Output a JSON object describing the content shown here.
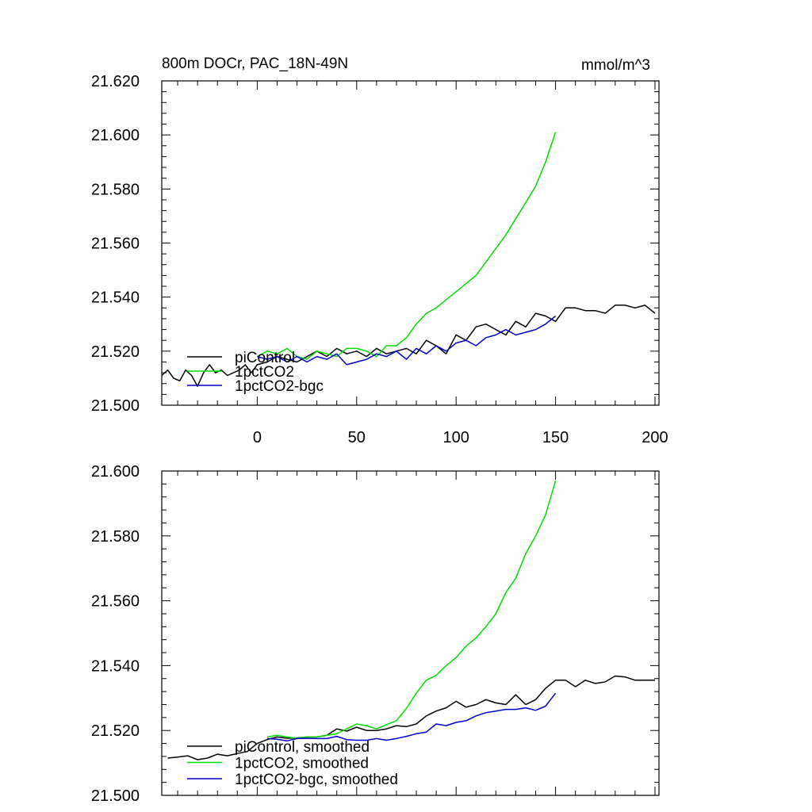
{
  "chart_data": [
    {
      "type": "line",
      "title": "800m DOCr, PAC_18N-49N",
      "units": "mmol/m^3",
      "xlim": [
        -48,
        202
      ],
      "ylim": [
        21.5,
        21.62
      ],
      "xticks": [
        0,
        50,
        100,
        150,
        200
      ],
      "yticks": [
        21.5,
        21.52,
        21.54,
        21.56,
        21.58,
        21.6,
        21.62
      ],
      "ytick_labels": [
        "21.500",
        "21.520",
        "21.540",
        "21.560",
        "21.580",
        "21.600",
        "21.620"
      ],
      "legend": "bottom-left",
      "series": [
        {
          "name": "piControl",
          "color": "#000000",
          "x": [
            -48,
            -45,
            -42,
            -39,
            -36,
            -33,
            -30,
            -27,
            -24,
            -21,
            -18,
            -15,
            -12,
            -9,
            -6,
            -3,
            0,
            5,
            10,
            15,
            20,
            25,
            30,
            35,
            40,
            45,
            50,
            55,
            60,
            65,
            70,
            75,
            80,
            85,
            90,
            95,
            100,
            105,
            110,
            115,
            120,
            125,
            130,
            135,
            140,
            145,
            150,
            155,
            160,
            165,
            170,
            175,
            180,
            185,
            190,
            195,
            200
          ],
          "y": [
            21.511,
            21.513,
            21.51,
            21.509,
            21.513,
            21.511,
            21.507,
            21.512,
            21.515,
            21.512,
            21.513,
            21.511,
            21.512,
            21.513,
            21.515,
            21.512,
            21.515,
            21.516,
            21.518,
            21.517,
            21.516,
            21.518,
            21.52,
            21.518,
            21.521,
            21.519,
            21.52,
            21.518,
            21.521,
            21.519,
            21.52,
            21.521,
            21.519,
            21.524,
            21.522,
            21.519,
            21.526,
            21.524,
            21.529,
            21.53,
            21.528,
            21.526,
            21.531,
            21.529,
            21.534,
            21.533,
            21.531,
            21.536,
            21.536,
            21.535,
            21.535,
            21.534,
            21.537,
            21.537,
            21.536,
            21.537,
            21.534
          ]
        },
        {
          "name": "1pctCO2",
          "color": "#00dd00",
          "x": [
            0,
            5,
            10,
            15,
            20,
            25,
            30,
            35,
            40,
            45,
            50,
            55,
            60,
            65,
            70,
            75,
            80,
            85,
            90,
            95,
            100,
            105,
            110,
            115,
            120,
            125,
            130,
            135,
            140,
            145,
            150
          ],
          "y": [
            21.518,
            21.52,
            21.519,
            21.521,
            21.518,
            21.517,
            21.52,
            21.519,
            21.518,
            21.521,
            21.521,
            21.52,
            21.518,
            21.522,
            21.522,
            21.525,
            21.53,
            21.534,
            21.536,
            21.539,
            21.542,
            21.545,
            21.548,
            21.553,
            21.558,
            21.563,
            21.569,
            21.575,
            21.581,
            21.59,
            21.601
          ]
        },
        {
          "name": "1pctCO2-bgc",
          "color": "#0000cc",
          "x": [
            0,
            5,
            10,
            15,
            20,
            25,
            30,
            35,
            40,
            45,
            50,
            55,
            60,
            65,
            70,
            75,
            80,
            85,
            90,
            95,
            100,
            105,
            110,
            115,
            120,
            125,
            130,
            135,
            140,
            145,
            150
          ],
          "y": [
            21.518,
            21.517,
            21.518,
            21.516,
            21.518,
            21.516,
            21.518,
            21.517,
            21.519,
            21.515,
            21.516,
            21.517,
            21.519,
            21.518,
            21.52,
            21.517,
            21.521,
            21.519,
            21.522,
            21.52,
            21.523,
            21.524,
            21.522,
            21.525,
            21.526,
            21.528,
            21.526,
            21.527,
            21.528,
            21.53,
            21.533
          ]
        }
      ]
    },
    {
      "type": "line",
      "title": "",
      "xlim": [
        -48,
        202
      ],
      "ylim": [
        21.5,
        21.6
      ],
      "xticks": [
        0,
        50,
        100,
        150,
        200
      ],
      "yticks": [
        21.5,
        21.52,
        21.54,
        21.56,
        21.58,
        21.6
      ],
      "ytick_labels": [
        "21.500",
        "21.520",
        "21.540",
        "21.560",
        "21.580",
        "21.600"
      ],
      "legend": "bottom-left",
      "series": [
        {
          "name": "piControl, smoothed",
          "color": "#000000",
          "x": [
            -45,
            -40,
            -35,
            -30,
            -25,
            -20,
            -15,
            -10,
            -5,
            0,
            5,
            10,
            15,
            20,
            25,
            30,
            35,
            40,
            45,
            50,
            55,
            60,
            65,
            70,
            75,
            80,
            85,
            90,
            95,
            100,
            105,
            110,
            115,
            120,
            125,
            130,
            135,
            140,
            145,
            150,
            155,
            160,
            165,
            170,
            175,
            180,
            185,
            190,
            195,
            200
          ],
          "y": [
            21.5115,
            21.5118,
            21.5122,
            21.511,
            21.5115,
            21.5127,
            21.5122,
            21.5129,
            21.5135,
            21.516,
            21.5172,
            21.518,
            21.5176,
            21.5177,
            21.518,
            21.518,
            21.5185,
            21.5205,
            21.5198,
            21.521,
            21.52,
            21.52,
            21.5205,
            21.5215,
            21.5212,
            21.522,
            21.5245,
            21.526,
            21.527,
            21.529,
            21.5272,
            21.528,
            21.5295,
            21.5285,
            21.528,
            21.531,
            21.528,
            21.5295,
            21.533,
            21.5355,
            21.5355,
            21.5335,
            21.5355,
            21.5345,
            21.535,
            21.5368,
            21.5365,
            21.5355,
            21.5355,
            21.5355
          ]
        },
        {
          "name": "1pctCO2, smoothed",
          "color": "#00dd00",
          "x": [
            5,
            10,
            15,
            20,
            25,
            30,
            35,
            40,
            45,
            50,
            55,
            60,
            65,
            70,
            75,
            80,
            85,
            90,
            95,
            100,
            105,
            110,
            115,
            120,
            125,
            130,
            135,
            140,
            145,
            150
          ],
          "y": [
            21.518,
            21.5185,
            21.518,
            21.5176,
            21.518,
            21.518,
            21.5185,
            21.519,
            21.5205,
            21.522,
            21.5215,
            21.5205,
            21.5218,
            21.523,
            21.5268,
            21.5315,
            21.5355,
            21.537,
            21.54,
            21.5425,
            21.546,
            21.5485,
            21.552,
            21.556,
            21.5625,
            21.567,
            21.5745,
            21.58,
            21.5865,
            21.597
          ]
        },
        {
          "name": "1pctCO2-bgc, smoothed",
          "color": "#0000cc",
          "x": [
            5,
            10,
            15,
            20,
            25,
            30,
            35,
            40,
            45,
            50,
            55,
            60,
            65,
            70,
            75,
            80,
            85,
            90,
            95,
            100,
            105,
            110,
            115,
            120,
            125,
            130,
            135,
            140,
            145,
            150
          ],
          "y": [
            21.5175,
            21.5173,
            21.5168,
            21.5175,
            21.5176,
            21.5175,
            21.5175,
            21.5182,
            21.5172,
            21.517,
            21.517,
            21.5175,
            21.517,
            21.5175,
            21.5182,
            21.519,
            21.5195,
            21.522,
            21.5215,
            21.5225,
            21.523,
            21.5245,
            21.5255,
            21.526,
            21.5265,
            21.5265,
            21.527,
            21.5262,
            21.5275,
            21.5315
          ]
        }
      ]
    }
  ]
}
